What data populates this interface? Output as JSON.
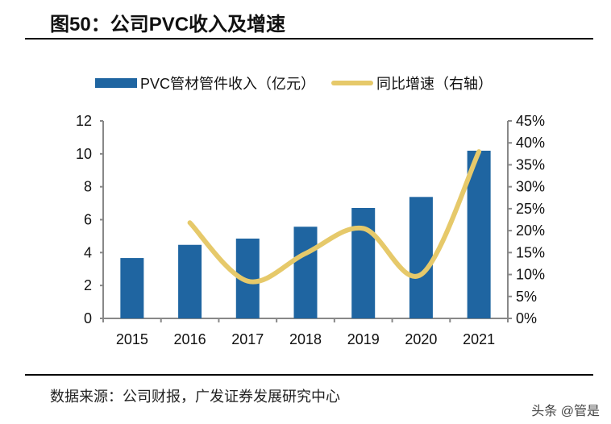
{
  "title": "图50：公司PVC收入及增速",
  "source": "数据来源：公司财报，广发证券发展研究中心",
  "watermark": "头条 @管是",
  "chart_data": {
    "type": "bar+line",
    "categories": [
      "2015",
      "2016",
      "2017",
      "2018",
      "2019",
      "2020",
      "2021"
    ],
    "series": [
      {
        "name": "PVC管材管件收入（亿元）",
        "type": "bar",
        "axis": "left",
        "color": "#1f65a1",
        "values": [
          3.67,
          4.47,
          4.85,
          5.57,
          6.71,
          7.38,
          10.19
        ]
      },
      {
        "name": "同比增速（右轴）",
        "type": "line",
        "smooth": true,
        "axis": "right",
        "color": "#e6c96a",
        "values": [
          null,
          0.218,
          0.085,
          0.148,
          0.205,
          0.1,
          0.38
        ]
      }
    ],
    "ylim": [
      0,
      12
    ],
    "yticks": [
      "0",
      "2",
      "4",
      "6",
      "8",
      "10",
      "12"
    ],
    "y2lim": [
      0,
      0.45
    ],
    "y2ticks": [
      "0%",
      "5%",
      "10%",
      "15%",
      "20%",
      "25%",
      "30%",
      "35%",
      "40%",
      "45%"
    ],
    "legend": "top",
    "grid": false
  }
}
